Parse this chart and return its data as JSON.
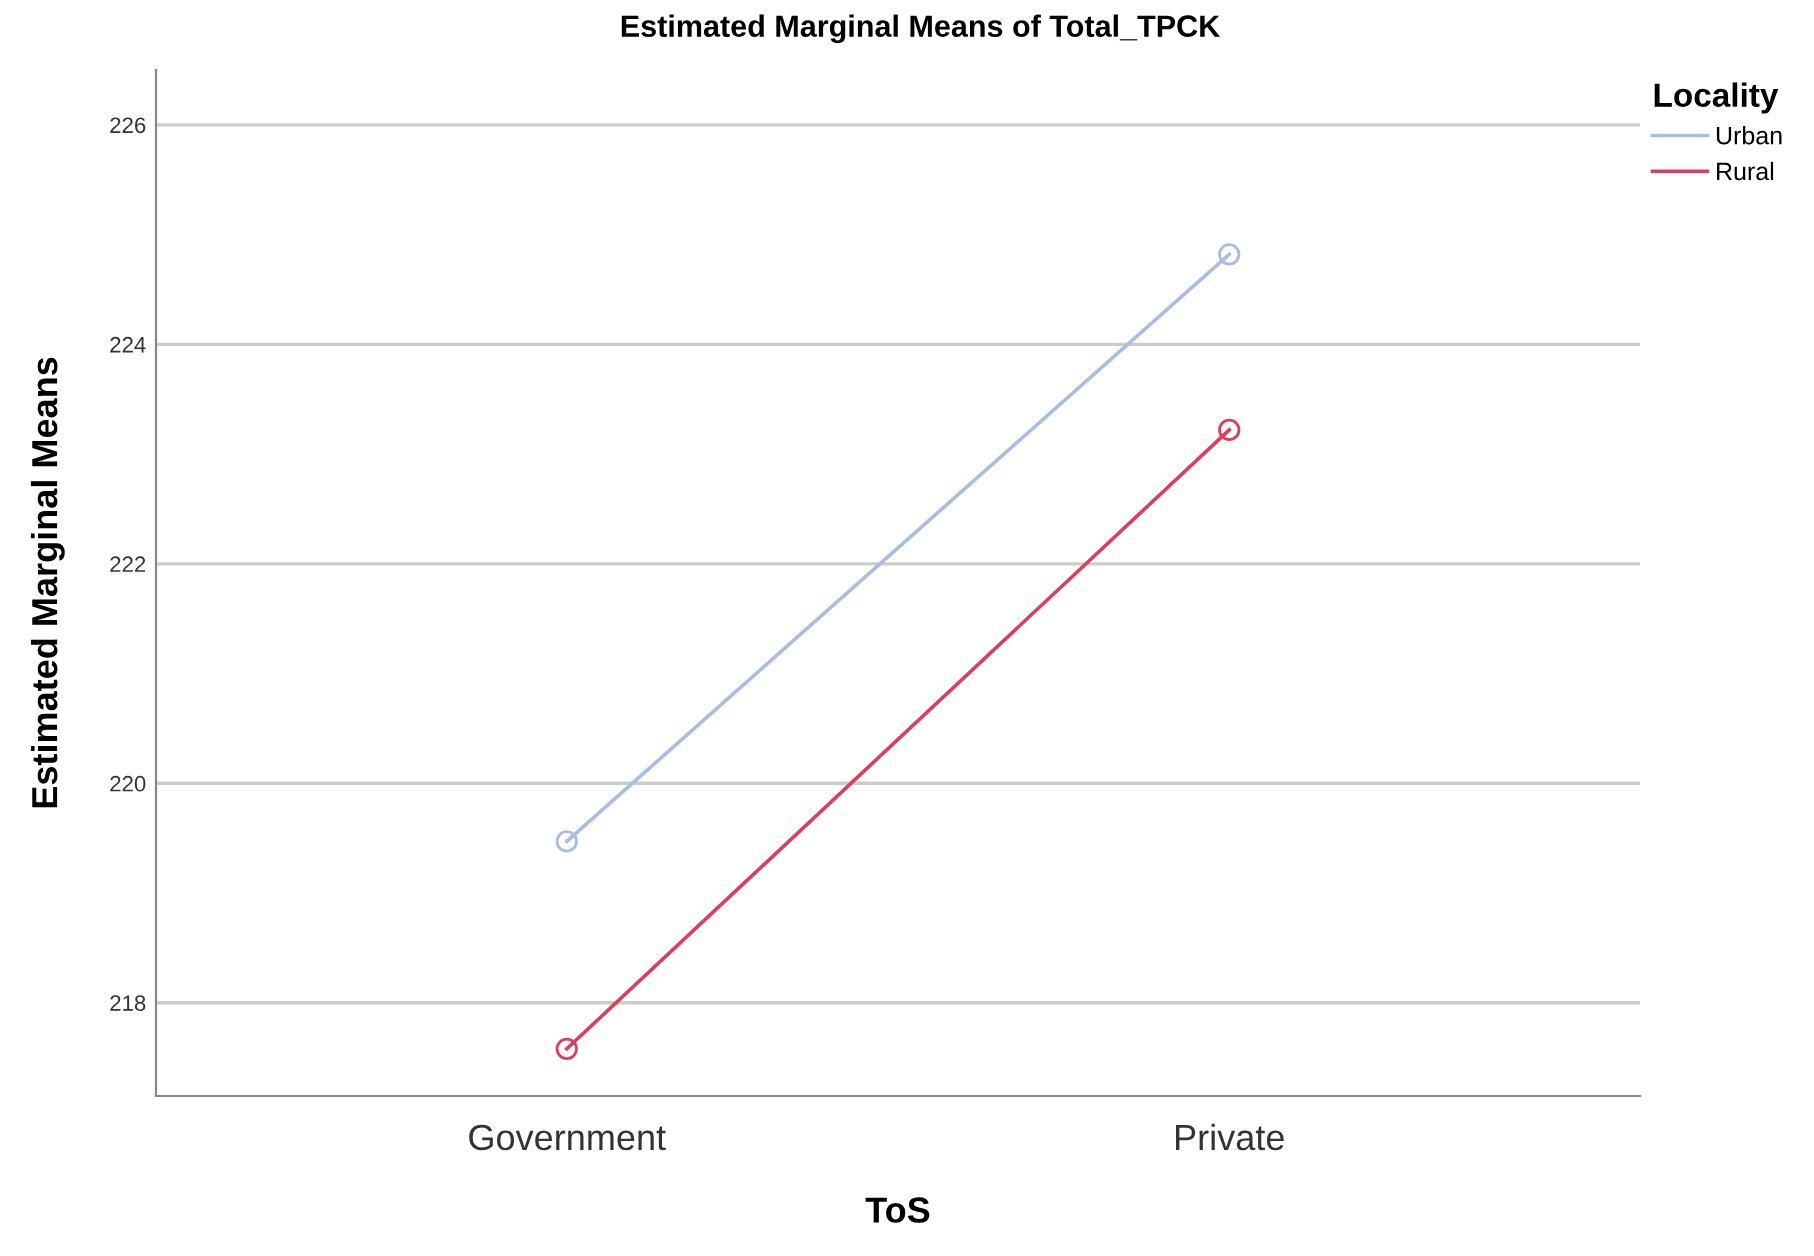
{
  "chart_data": {
    "type": "line",
    "title": "Estimated Marginal Means of Total_TPCK",
    "xlabel": "ToS",
    "ylabel": "Estimated Marginal Means",
    "legend_title": "Locality",
    "categories": [
      "Government",
      "Private"
    ],
    "series": [
      {
        "name": "Urban",
        "color": "#a9bde0",
        "values": [
          219.47,
          224.82
        ]
      },
      {
        "name": "Rural",
        "color": "#d9405e",
        "values": [
          217.58,
          223.22
        ]
      }
    ],
    "ylim": [
      217.15,
      226.5
    ],
    "yticks": [
      218,
      220,
      222,
      224,
      226
    ],
    "grid": "y",
    "legend": "top right",
    "marker": "circle",
    "line_style": "solid"
  }
}
